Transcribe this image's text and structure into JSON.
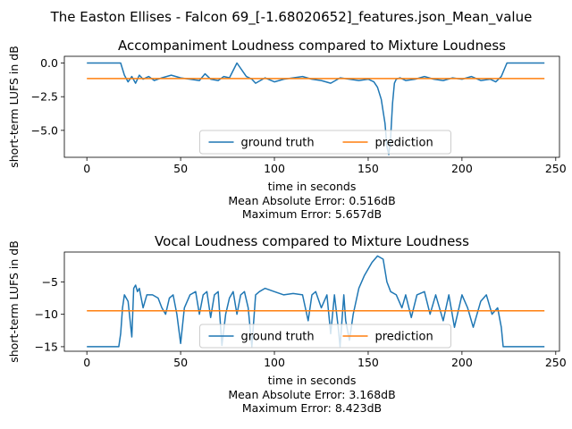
{
  "suptitle": "The Easton Ellises - Falcon 69_[-1.68020652]_features.json_Mean_value",
  "colors": {
    "ground_truth": "#1f77b4",
    "prediction": "#ff7f0e"
  },
  "chart_data": [
    {
      "type": "line",
      "title": "Accompaniment Loudness compared to Mixture Loudness",
      "xlabel": "time in seconds",
      "ylabel": "short-term LUFS in dB",
      "xlim": [
        -12,
        252
      ],
      "ylim": [
        -7.0,
        0.5
      ],
      "xticks": [
        0,
        50,
        100,
        150,
        200,
        250
      ],
      "yticks": [
        0.0,
        -2.5,
        -5.0
      ],
      "ytick_labels": [
        "0.0",
        "−2.5",
        "−5.0"
      ],
      "grid": false,
      "legend": {
        "placement": "lower center",
        "entries": [
          "ground truth",
          "prediction"
        ]
      },
      "metrics": [
        "Mean Absolute Error: 0.516dB",
        "Maximum Error: 5.657dB"
      ],
      "series": [
        {
          "name": "ground truth",
          "x": [
            0,
            18,
            20,
            22,
            24,
            26,
            28,
            30,
            33,
            36,
            40,
            45,
            50,
            55,
            60,
            63,
            66,
            70,
            73,
            76,
            80,
            85,
            88,
            90,
            95,
            100,
            105,
            110,
            115,
            120,
            125,
            130,
            135,
            140,
            145,
            150,
            153,
            155,
            157,
            159,
            160,
            161,
            162,
            163,
            164,
            165,
            167,
            170,
            175,
            180,
            185,
            190,
            195,
            200,
            205,
            210,
            215,
            218,
            221,
            224,
            244
          ],
          "y": [
            0,
            0,
            -0.9,
            -1.4,
            -1.0,
            -1.5,
            -0.9,
            -1.2,
            -1.0,
            -1.3,
            -1.1,
            -0.9,
            -1.1,
            -1.2,
            -1.3,
            -0.8,
            -1.2,
            -1.3,
            -1.0,
            -1.1,
            0,
            -1.0,
            -1.2,
            -1.5,
            -1.1,
            -1.4,
            -1.2,
            -1.1,
            -1.0,
            -1.2,
            -1.3,
            -1.5,
            -1.1,
            -1.2,
            -1.3,
            -1.2,
            -1.4,
            -1.8,
            -2.7,
            -4.5,
            -6.2,
            -6.8,
            -5.5,
            -3.0,
            -1.5,
            -1.2,
            -1.1,
            -1.3,
            -1.2,
            -1.0,
            -1.2,
            -1.3,
            -1.1,
            -1.2,
            -1.0,
            -1.3,
            -1.2,
            -1.4,
            -1.0,
            0,
            0
          ]
        },
        {
          "name": "prediction",
          "x": [
            0,
            244
          ],
          "y": [
            -1.15,
            -1.15
          ]
        }
      ]
    },
    {
      "type": "line",
      "title": "Vocal Loudness compared to Mixture Loudness",
      "xlabel": "time in seconds",
      "ylabel": "short-term LUFS in dB",
      "xlim": [
        -12,
        252
      ],
      "ylim": [
        -15.7,
        -0.4
      ],
      "xticks": [
        0,
        50,
        100,
        150,
        200,
        250
      ],
      "yticks": [
        -5,
        -10,
        -15
      ],
      "ytick_labels": [
        "−5",
        "−10",
        "−15"
      ],
      "grid": false,
      "legend": {
        "placement": "lower center",
        "entries": [
          "ground truth",
          "prediction"
        ]
      },
      "metrics": [
        "Mean Absolute Error: 3.168dB",
        "Maximum Error: 8.423dB"
      ],
      "series": [
        {
          "name": "ground truth",
          "x": [
            0,
            17,
            18,
            19,
            20,
            22,
            24,
            25,
            26,
            27,
            28,
            30,
            32,
            35,
            38,
            40,
            42,
            44,
            46,
            48,
            50,
            52,
            55,
            58,
            60,
            62,
            64,
            66,
            68,
            70,
            72,
            74,
            76,
            78,
            80,
            82,
            84,
            86,
            88,
            90,
            92,
            95,
            100,
            105,
            110,
            115,
            118,
            120,
            122,
            125,
            128,
            130,
            132,
            134,
            135,
            137,
            138,
            140,
            142,
            145,
            148,
            150,
            152,
            155,
            158,
            160,
            162,
            165,
            168,
            170,
            173,
            176,
            180,
            183,
            186,
            190,
            193,
            196,
            200,
            203,
            206,
            210,
            213,
            216,
            219,
            221,
            222,
            223,
            244
          ],
          "y": [
            -15,
            -15,
            -13,
            -9,
            -7,
            -8,
            -13.5,
            -6,
            -5.5,
            -6.5,
            -6,
            -9,
            -7,
            -7,
            -7.5,
            -9,
            -10,
            -7.5,
            -7,
            -10,
            -14.5,
            -9,
            -7,
            -6.5,
            -10,
            -7,
            -6.5,
            -10.5,
            -7,
            -6.5,
            -14.8,
            -10,
            -7.5,
            -6.5,
            -10,
            -7,
            -6.5,
            -9,
            -15,
            -7,
            -6.5,
            -6,
            -6.5,
            -7,
            -6.8,
            -7,
            -11,
            -7,
            -6.5,
            -9,
            -7,
            -13,
            -7,
            -12,
            -15,
            -7,
            -11,
            -14,
            -10,
            -6,
            -4,
            -3,
            -2,
            -1,
            -1.5,
            -5,
            -6.5,
            -7,
            -9,
            -7,
            -10.5,
            -7,
            -6.5,
            -10,
            -7,
            -11,
            -7,
            -12,
            -7,
            -9,
            -12,
            -8,
            -7,
            -10,
            -9,
            -12,
            -15,
            -15,
            -15
          ],
          "y_note": ""
        },
        {
          "name": "prediction",
          "x": [
            0,
            244
          ],
          "y": [
            -9.45,
            -9.45
          ]
        }
      ]
    }
  ]
}
